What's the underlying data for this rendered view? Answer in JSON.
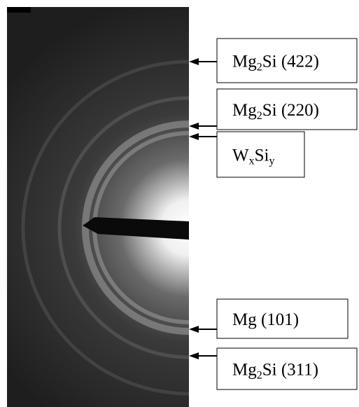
{
  "labels": [
    [
      {
        "text": "Mg"
      },
      {
        "sub": "2"
      },
      {
        "text": "Si (422)"
      }
    ],
    [
      {
        "text": "Mg"
      },
      {
        "sub": "2"
      },
      {
        "text": "Si (220)"
      }
    ],
    [
      {
        "text": "W"
      },
      {
        "sub": "x"
      },
      {
        "text": "Si"
      },
      {
        "sub": "y"
      }
    ],
    [
      {
        "text": "Mg (101)"
      }
    ],
    [
      {
        "text": "Mg"
      },
      {
        "sub": "2"
      },
      {
        "text": "Si (311)"
      }
    ]
  ]
}
